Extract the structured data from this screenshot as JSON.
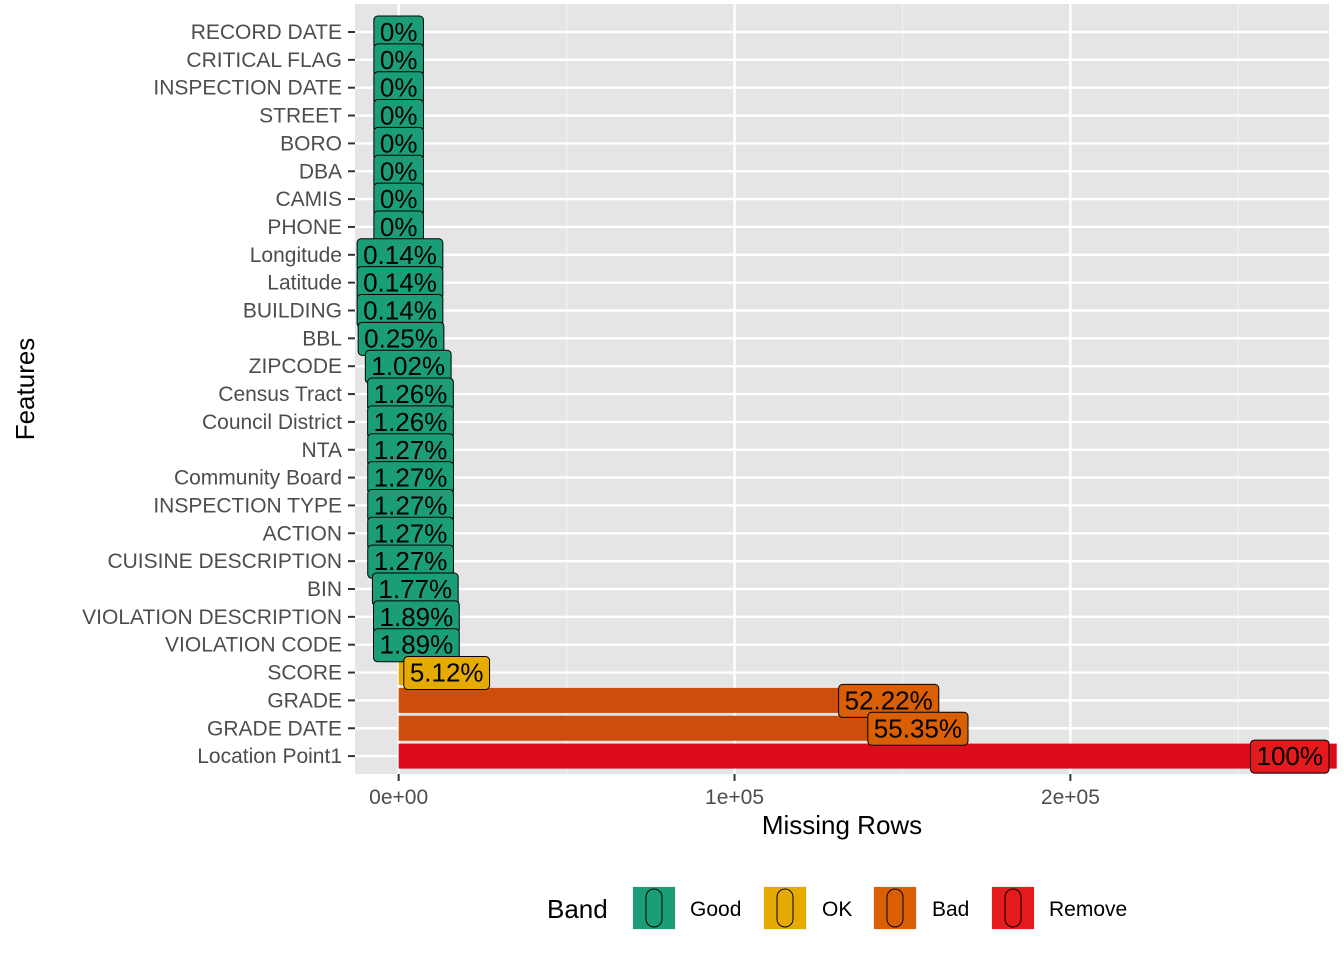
{
  "chart_data": {
    "type": "bar",
    "orientation": "horizontal",
    "xlabel": "Missing Rows",
    "ylabel": "Features",
    "xlim": [
      -13000,
      277000
    ],
    "x_ticks": [
      {
        "value": 0,
        "label": "0e+00"
      },
      {
        "value": 100000,
        "label": "1e+05"
      },
      {
        "value": 200000,
        "label": "2e+05"
      }
    ],
    "grid": true,
    "legend": {
      "title": "Band",
      "position": "bottom",
      "entries": [
        {
          "name": "Good",
          "color": "#1B9E77"
        },
        {
          "name": "OK",
          "color": "#E6AB02"
        },
        {
          "name": "Bad",
          "color": "#D95F02"
        },
        {
          "name": "Remove",
          "color": "#E41A1C"
        }
      ]
    },
    "categories": [
      "RECORD DATE",
      "CRITICAL FLAG",
      "INSPECTION DATE",
      "STREET",
      "BORO",
      "DBA",
      "CAMIS",
      "PHONE",
      "Longitude",
      "Latitude",
      "BUILDING",
      "BBL",
      "ZIPCODE",
      "Census Tract",
      "Council District",
      "NTA",
      "Community Board",
      "INSPECTION TYPE",
      "ACTION",
      "CUISINE DESCRIPTION",
      "BIN",
      "VIOLATION DESCRIPTION",
      "VIOLATION CODE",
      "SCORE",
      "GRADE",
      "GRADE DATE",
      "Location Point1"
    ],
    "values": [
      0,
      0,
      0,
      0,
      0,
      0,
      0,
      0,
      390,
      390,
      390,
      700,
      2850,
      3520,
      3520,
      3550,
      3550,
      3550,
      3550,
      3550,
      4950,
      5280,
      5280,
      14300,
      145900,
      154600,
      279300
    ],
    "labels": [
      "0%",
      "0%",
      "0%",
      "0%",
      "0%",
      "0%",
      "0%",
      "0%",
      "0.14%",
      "0.14%",
      "0.14%",
      "0.25%",
      "1.02%",
      "1.26%",
      "1.26%",
      "1.27%",
      "1.27%",
      "1.27%",
      "1.27%",
      "1.27%",
      "1.77%",
      "1.89%",
      "1.89%",
      "5.12%",
      "52.22%",
      "55.35%",
      "100%"
    ],
    "bands": [
      "Good",
      "Good",
      "Good",
      "Good",
      "Good",
      "Good",
      "Good",
      "Good",
      "Good",
      "Good",
      "Good",
      "Good",
      "Good",
      "Good",
      "Good",
      "Good",
      "Good",
      "Good",
      "Good",
      "Good",
      "Good",
      "Good",
      "Good",
      "OK",
      "Bad",
      "Bad",
      "Remove"
    ]
  }
}
